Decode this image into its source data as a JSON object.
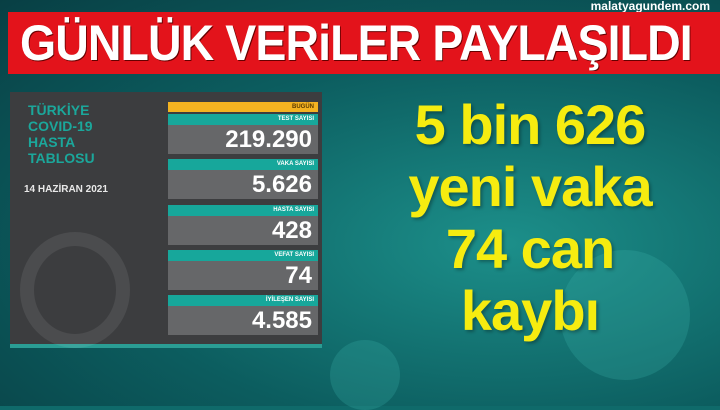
{
  "headline": "GÜNLÜK VERiLER PAYLAŞILDI",
  "site": "malatyagundem.com",
  "panel": {
    "title_lines": [
      "TÜRKİYE",
      "COVID-19",
      "HASTA",
      "TABLOSU"
    ],
    "date": "14 HAZİRAN 2021",
    "today_label": "BUGÜN",
    "rows": [
      {
        "label": "TEST SAYISI",
        "value": "219.290"
      },
      {
        "label": "VAKA SAYISI",
        "value": "5.626"
      },
      {
        "label": "HASTA SAYISI",
        "value": "428"
      },
      {
        "label": "VEFAT SAYISI",
        "value": "74"
      },
      {
        "label": "İYİLEŞEN SAYISI",
        "value": "4.585"
      }
    ]
  },
  "summary_lines": [
    "5 bin 626",
    "yeni vaka",
    "74 can",
    "kaybı"
  ],
  "colors": {
    "banner": "#e3131b",
    "summary_text": "#f6ec10",
    "label_teal": "#17a79b",
    "today": "#f4b321"
  }
}
